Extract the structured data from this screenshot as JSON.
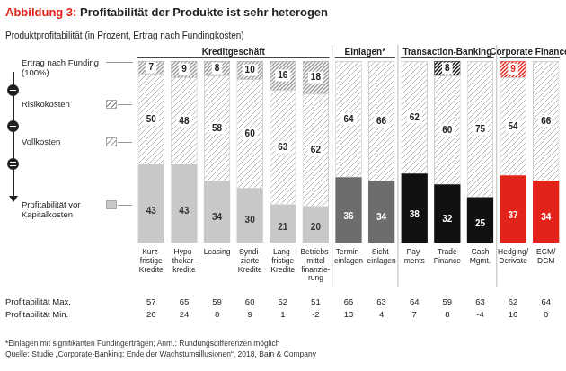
{
  "chart_data": {
    "type": "bar",
    "stacked": true,
    "title": "Abbildung 3: Profitabilität der Produkte ist sehr heterogen",
    "subtitle": "Produktprofitabilität (in Prozent, Ertrag nach Fundingkosten)",
    "categories": [
      "Kurz-\nfristige\nKredite",
      "Hypo-\nthekar-\nkredite",
      "Leasing",
      "Syndi-\nzierte\nKredite",
      "Lang-\nfristige\nKredite",
      "Betriebs-\nmittel\nfinanzie-\nrung",
      "Termin-\neinlagen",
      "Sicht-\neinlagen",
      "Pay-\nments",
      "Trade\nFinance",
      "Cash\nMgmt.",
      "Hedging/\nDerivate",
      "ECM/\nDCM"
    ],
    "groups": [
      {
        "label": "Kreditgeschäft",
        "categories": [
          "Kurz-\nfristige\nKredite",
          "Hypo-\nthekar-\nkredite",
          "Leasing",
          "Syndi-\nzierte\nKredite",
          "Lang-\nfristige\nKredite",
          "Betriebs-\nmittel\nfinanzie-\nrung"
        ]
      },
      {
        "label": "Einlagen*",
        "categories": [
          "Termin-\neinlagen",
          "Sicht-\neinlagen"
        ]
      },
      {
        "label": "Transaction-Banking",
        "categories": [
          "Pay-\nments",
          "Trade\nFinance",
          "Cash\nMgmt."
        ]
      },
      {
        "label": "Corporate Finance",
        "categories": [
          "Hedging/\nDerivate",
          "ECM/\nDCM"
        ]
      }
    ],
    "series": [
      {
        "name": "Profitabilität vor Kapitalkosten",
        "colors": [
          "#c8c8c8",
          "#c8c8c8",
          "#c8c8c8",
          "#c8c8c8",
          "#c8c8c8",
          "#c8c8c8",
          "#6d6d6d",
          "#6d6d6d",
          "#111111",
          "#111111",
          "#111111",
          "#e2231a",
          "#e2231a"
        ],
        "values": [
          43,
          43,
          34,
          30,
          21,
          20,
          36,
          34,
          38,
          32,
          25,
          37,
          34
        ]
      },
      {
        "name": "Vollkosten",
        "color": "#b5b5b5",
        "values": [
          50,
          48,
          58,
          60,
          63,
          62,
          64,
          66,
          62,
          60,
          75,
          54,
          66
        ]
      },
      {
        "name": "Risikokosten",
        "colors": [
          "#9a9a9a",
          "#9a9a9a",
          "#9a9a9a",
          "#9a9a9a",
          "#9a9a9a",
          "#9a9a9a",
          "#9a9a9a",
          "#9a9a9a",
          "#9a9a9a",
          "#111111",
          "#9a9a9a",
          "#e2231a",
          "#9a9a9a"
        ],
        "values": [
          7,
          9,
          8,
          10,
          16,
          18,
          null,
          null,
          null,
          8,
          null,
          9,
          null
        ]
      }
    ],
    "annotations": [
      "Ertrag nach Funding (100%)"
    ],
    "ylim": [
      0,
      100
    ],
    "tick_labels": "x",
    "grid": false,
    "data_labels": true,
    "legend": "left",
    "rows": [
      {
        "label": "Profitabilität Max.",
        "values": [
          57,
          65,
          59,
          60,
          52,
          51,
          66,
          63,
          64,
          59,
          63,
          62,
          64
        ]
      },
      {
        "label": "Profitabilität Min.",
        "values": [
          26,
          24,
          8,
          9,
          1,
          -2,
          13,
          4,
          7,
          8,
          -4,
          16,
          8
        ]
      }
    ],
    "notes": [
      "*Einlagen mit signifikanten Fundingerträgen; Anm.: Rundungsdifferenzen möglich",
      "Quelle: Studie „Corporate-Banking: Ende der Wachstumsillusionen“, 2018, Bain & Company"
    ]
  }
}
